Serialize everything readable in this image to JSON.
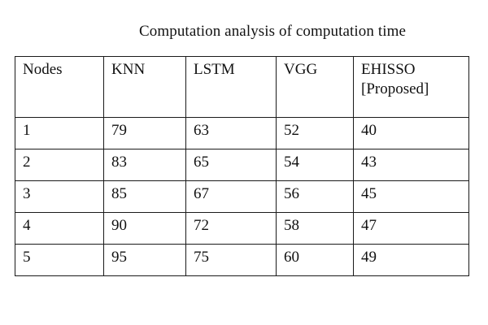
{
  "chart_data": {
    "type": "table",
    "title": "Computation analysis of computation time",
    "columns": [
      "Nodes",
      "KNN",
      "LSTM",
      "VGG",
      "EHISSO\n[Proposed]"
    ],
    "rows": [
      [
        "1",
        "79",
        "63",
        "52",
        "40"
      ],
      [
        "2",
        "83",
        "65",
        "54",
        "43"
      ],
      [
        "3",
        "85",
        "67",
        "56",
        "45"
      ],
      [
        "4",
        "90",
        "72",
        "58",
        "47"
      ],
      [
        "5",
        "95",
        "75",
        "60",
        "49"
      ]
    ]
  }
}
